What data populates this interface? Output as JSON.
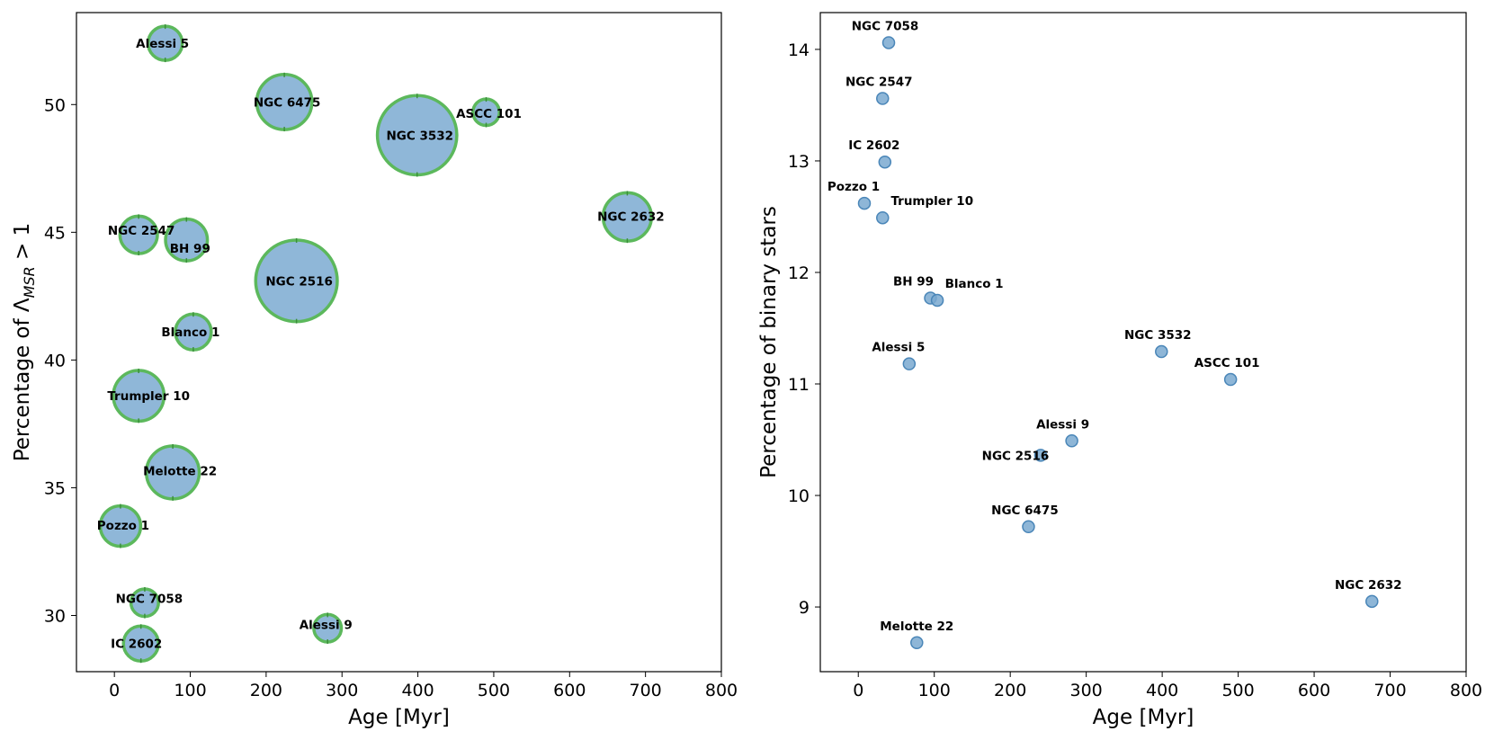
{
  "chart_data": [
    {
      "type": "scatter",
      "title": "",
      "xlabel": "Age [Myr]",
      "ylabel_prefix": "Percentage of Λ",
      "ylabel_sub": "MSR",
      "ylabel_suffix": " > 1",
      "xlim": [
        -50,
        800
      ],
      "ylim": [
        27.8,
        53.6
      ],
      "xticks": [
        0,
        100,
        200,
        300,
        400,
        500,
        600,
        700,
        800
      ],
      "yticks": [
        30,
        35,
        40,
        45,
        50
      ],
      "marker_size_encodes": "size",
      "fill_color": "#8fb7d8",
      "edge_color": "#5cb85c",
      "grid": false,
      "points": [
        {
          "name": "Alessi 5",
          "x": 67,
          "y": 52.4,
          "size": 1.0
        },
        {
          "name": "NGC 6475",
          "x": 224,
          "y": 50.1,
          "size": 2.6
        },
        {
          "name": "ASCC 101",
          "x": 490,
          "y": 49.7,
          "size": 0.6
        },
        {
          "name": "NGC 3532",
          "x": 399,
          "y": 48.8,
          "size": 5.4
        },
        {
          "name": "NGC 2632",
          "x": 676,
          "y": 45.6,
          "size": 2.0
        },
        {
          "name": "NGC 2547",
          "x": 32,
          "y": 44.9,
          "size": 1.2
        },
        {
          "name": "BH 99",
          "x": 95,
          "y": 44.7,
          "size": 1.5
        },
        {
          "name": "NGC 2516",
          "x": 240,
          "y": 43.1,
          "size": 5.7
        },
        {
          "name": "Blanco 1",
          "x": 104,
          "y": 41.1,
          "size": 1.1
        },
        {
          "name": "Trumpler 10",
          "x": 32,
          "y": 38.6,
          "size": 2.2
        },
        {
          "name": "Melotte 22",
          "x": 77,
          "y": 35.6,
          "size": 2.4
        },
        {
          "name": "Pozzo 1",
          "x": 8,
          "y": 33.5,
          "size": 1.4
        },
        {
          "name": "NGC 7058",
          "x": 40,
          "y": 30.5,
          "size": 0.65
        },
        {
          "name": "Alessi 9",
          "x": 281,
          "y": 29.5,
          "size": 0.65
        },
        {
          "name": "IC 2602",
          "x": 35,
          "y": 28.9,
          "size": 1.05
        }
      ]
    },
    {
      "type": "scatter",
      "title": "",
      "xlabel": "Age [Myr]",
      "ylabel": "Percentage of binary stars",
      "xlim": [
        -50,
        800
      ],
      "ylim": [
        8.42,
        14.33
      ],
      "xticks": [
        0,
        100,
        200,
        300,
        400,
        500,
        600,
        700,
        800
      ],
      "yticks": [
        9,
        10,
        11,
        12,
        13,
        14
      ],
      "marker_color": "#7aa9d0",
      "grid": false,
      "points": [
        {
          "name": "NGC 7058",
          "x": 40,
          "y": 14.06
        },
        {
          "name": "NGC 2547",
          "x": 32,
          "y": 13.56
        },
        {
          "name": "IC 2602",
          "x": 35,
          "y": 12.99
        },
        {
          "name": "Pozzo 1",
          "x": 8,
          "y": 12.62
        },
        {
          "name": "Trumpler 10",
          "x": 32,
          "y": 12.49
        },
        {
          "name": "BH 99",
          "x": 95,
          "y": 11.77
        },
        {
          "name": "Blanco 1",
          "x": 104,
          "y": 11.75
        },
        {
          "name": "NGC 3532",
          "x": 399,
          "y": 11.29
        },
        {
          "name": "Alessi 5",
          "x": 67,
          "y": 11.18
        },
        {
          "name": "ASCC 101",
          "x": 490,
          "y": 11.04
        },
        {
          "name": "Alessi 9",
          "x": 281,
          "y": 10.49
        },
        {
          "name": "NGC 2516",
          "x": 240,
          "y": 10.36
        },
        {
          "name": "NGC 6475",
          "x": 224,
          "y": 9.72
        },
        {
          "name": "NGC 2632",
          "x": 676,
          "y": 9.05
        },
        {
          "name": "Melotte 22",
          "x": 77,
          "y": 8.68
        }
      ]
    }
  ]
}
